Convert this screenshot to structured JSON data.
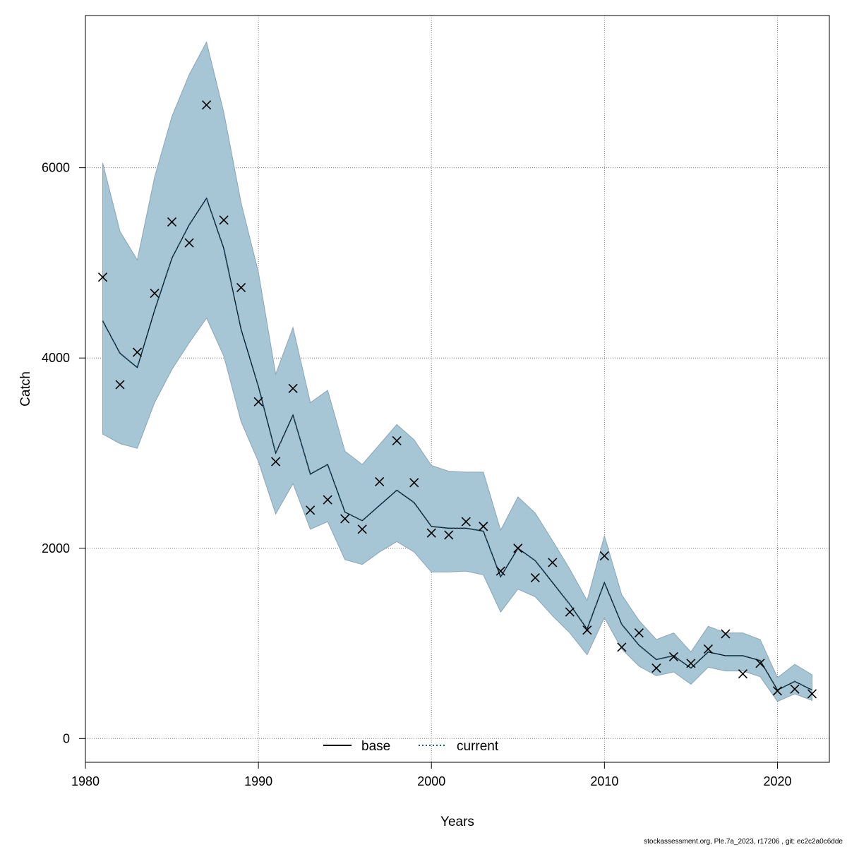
{
  "chart_data": {
    "type": "line",
    "xlabel": "Years",
    "ylabel": "Catch",
    "xlim": [
      1980,
      2023
    ],
    "ylim": [
      -250,
      7600
    ],
    "x_ticks": [
      1980,
      1990,
      2000,
      2010,
      2020
    ],
    "y_ticks": [
      0,
      2000,
      4000,
      6000
    ],
    "grid": true,
    "legend_position": "bottom-center",
    "colors": {
      "band": "#a6c5d5",
      "band_edge": "#8aa6b5",
      "current": "#1a5a7a",
      "base": "#000000",
      "observed": "#000000"
    },
    "years": [
      1981,
      1982,
      1983,
      1984,
      1985,
      1986,
      1987,
      1988,
      1989,
      1990,
      1991,
      1992,
      1993,
      1994,
      1995,
      1996,
      1997,
      1998,
      1999,
      2000,
      2001,
      2002,
      2003,
      2004,
      2005,
      2006,
      2007,
      2008,
      2009,
      2010,
      2011,
      2012,
      2013,
      2014,
      2015,
      2016,
      2017,
      2018,
      2019,
      2020,
      2021,
      2022
    ],
    "series": [
      {
        "name": "base",
        "style": "solid",
        "values": [
          4390,
          4050,
          3900,
          4500,
          5050,
          5400,
          5680,
          5150,
          4300,
          3700,
          3000,
          3400,
          2780,
          2880,
          2380,
          2290,
          2450,
          2610,
          2480,
          2230,
          2210,
          2210,
          2180,
          1700,
          2000,
          1870,
          1640,
          1410,
          1150,
          1640,
          1200,
          980,
          830,
          870,
          740,
          910,
          870,
          870,
          820,
          510,
          600,
          510
        ]
      },
      {
        "name": "current",
        "style": "dotted",
        "values": [
          4390,
          4050,
          3900,
          4500,
          5050,
          5400,
          5680,
          5150,
          4300,
          3700,
          3000,
          3400,
          2780,
          2880,
          2380,
          2290,
          2450,
          2610,
          2480,
          2230,
          2210,
          2210,
          2180,
          1700,
          2000,
          1870,
          1640,
          1410,
          1150,
          1640,
          1200,
          980,
          830,
          870,
          740,
          910,
          870,
          870,
          820,
          510,
          600,
          510
        ]
      }
    ],
    "confidence_band": {
      "name": "current uncertainty",
      "lower": [
        3200,
        3100,
        3050,
        3530,
        3880,
        4160,
        4420,
        4020,
        3330,
        2910,
        2360,
        2680,
        2200,
        2280,
        1880,
        1830,
        1960,
        2070,
        1960,
        1750,
        1750,
        1760,
        1720,
        1330,
        1570,
        1490,
        1290,
        1110,
        880,
        1270,
        940,
        760,
        660,
        700,
        570,
        750,
        710,
        710,
        650,
        390,
        470,
        400
      ],
      "upper": [
        6050,
        5330,
        5030,
        5900,
        6540,
        6980,
        7320,
        6580,
        5630,
        4900,
        3830,
        4320,
        3530,
        3660,
        3020,
        2880,
        3090,
        3300,
        3140,
        2870,
        2810,
        2800,
        2800,
        2190,
        2540,
        2370,
        2080,
        1780,
        1450,
        2130,
        1510,
        1240,
        1040,
        1110,
        910,
        1180,
        1110,
        1110,
        1040,
        640,
        780,
        670
      ]
    },
    "observed": {
      "name": "observed catch",
      "marker": "x",
      "values": [
        4850,
        3720,
        4060,
        4680,
        5430,
        5210,
        6660,
        5450,
        4740,
        3540,
        2910,
        3680,
        2400,
        2510,
        2310,
        2200,
        2700,
        3130,
        2690,
        2160,
        2140,
        2280,
        2230,
        1760,
        2000,
        1690,
        1850,
        1330,
        1140,
        1920,
        960,
        1110,
        740,
        860,
        790,
        940,
        1100,
        680,
        790,
        500,
        520,
        470
      ]
    }
  },
  "legend": {
    "base_label": "base",
    "current_label": "current"
  },
  "footer": {
    "text": "stockassessment.org, Ple.7a_2023, r17206 , git: ec2c2a0c6dde"
  }
}
